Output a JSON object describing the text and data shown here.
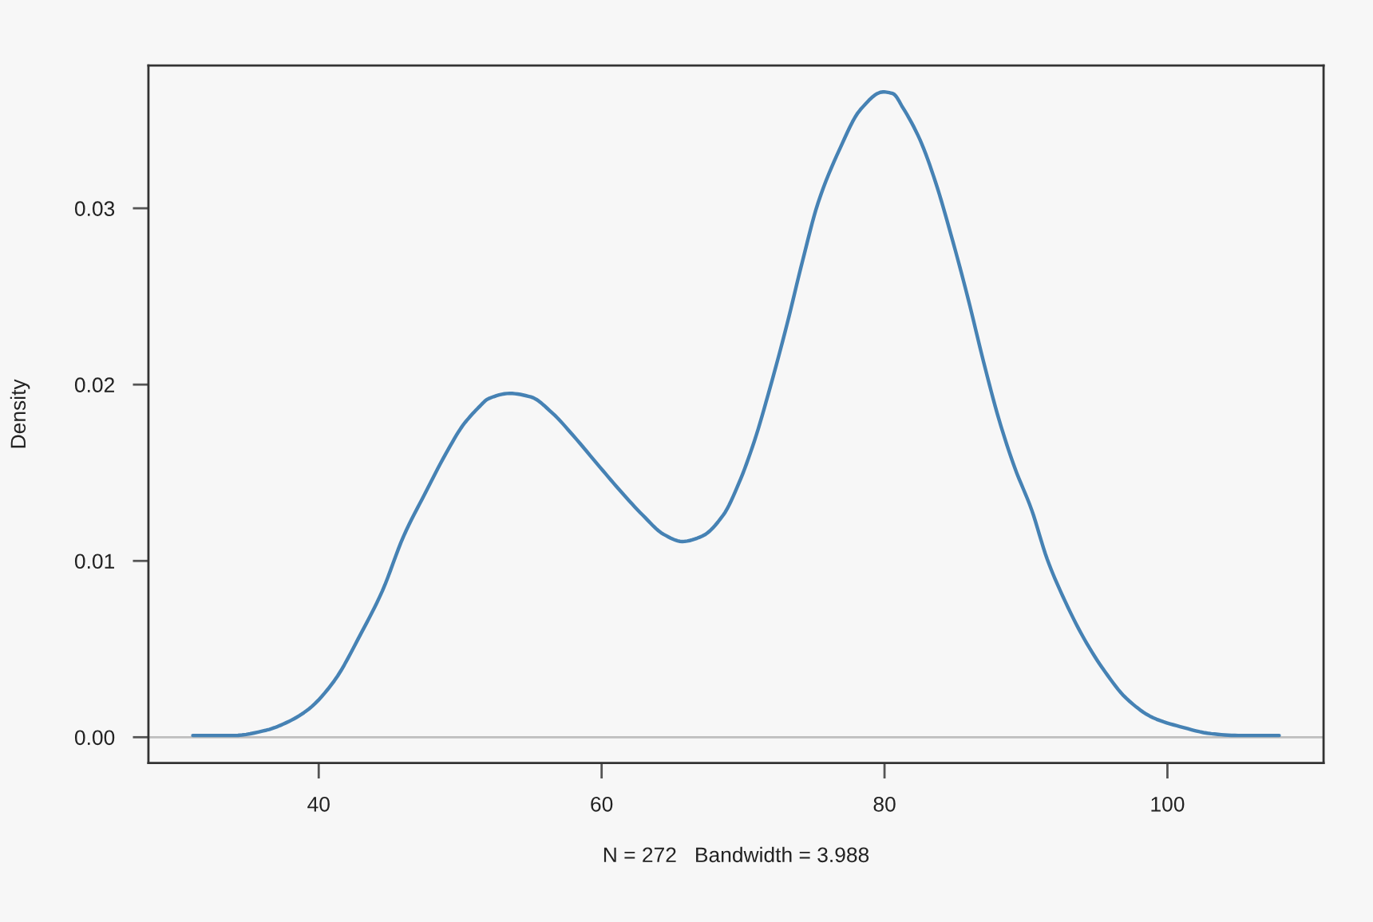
{
  "chart_data": {
    "type": "line",
    "xlabel": "N = 272   Bandwidth = 3.988",
    "ylabel": "Density",
    "x": [
      31.1,
      34.0,
      36.3,
      37.9,
      39.3,
      41.1,
      43.0,
      44.5,
      46.0,
      47.5,
      49.0,
      50.2,
      50.5,
      51.3,
      52.0,
      53.5,
      55.0,
      56.5,
      58.0,
      59.9,
      61.4,
      62.9,
      64.4,
      65.7,
      67.1,
      68.6,
      69.7,
      70.8,
      71.9,
      73.1,
      74.2,
      75.3,
      76.8,
      78.3,
      79.9,
      80.6,
      81.3,
      82.5,
      83.6,
      84.7,
      85.9,
      87.0,
      88.1,
      89.2,
      90.4,
      91.5,
      92.6,
      94.1,
      95.6,
      97.1,
      99.0,
      100.9,
      103.1,
      105.0,
      107.9
    ],
    "series": [
      {
        "color": "#4682b4",
        "values": [
          0.0001,
          0.0001,
          0.0004,
          0.0009,
          0.0016,
          0.0032,
          0.0059,
          0.0083,
          0.0114,
          0.0138,
          0.0161,
          0.0177,
          0.018,
          0.0187,
          0.0192,
          0.0195,
          0.0193,
          0.0184,
          0.0171,
          0.0153,
          0.0139,
          0.0126,
          0.0115,
          0.0111,
          0.0114,
          0.0126,
          0.0144,
          0.0168,
          0.0198,
          0.0234,
          0.027,
          0.0303,
          0.0333,
          0.0356,
          0.0366,
          0.0365,
          0.0357,
          0.0339,
          0.0315,
          0.0285,
          0.0249,
          0.0213,
          0.018,
          0.0153,
          0.0129,
          0.0101,
          0.008,
          0.0056,
          0.0037,
          0.0022,
          0.0011,
          0.0006,
          0.0002,
          0.0001,
          0.0001
        ]
      }
    ],
    "xlim": [
      27.96,
      111.04
    ],
    "xticks": [
      40,
      60,
      80,
      100
    ],
    "ylim": [
      -0.00146,
      0.0381
    ],
    "yticks": [
      {
        "value": 0,
        "label": "0.00"
      },
      {
        "value": 0.01,
        "label": "0.01"
      },
      {
        "value": 0.02,
        "label": "0.02"
      },
      {
        "value": 0.03,
        "label": "0.03"
      }
    ],
    "ref_lines": [
      {
        "axis": "y",
        "value": 0,
        "color": "#bebebe"
      }
    ],
    "grid": false,
    "marker": "none",
    "line_style": "solid"
  }
}
